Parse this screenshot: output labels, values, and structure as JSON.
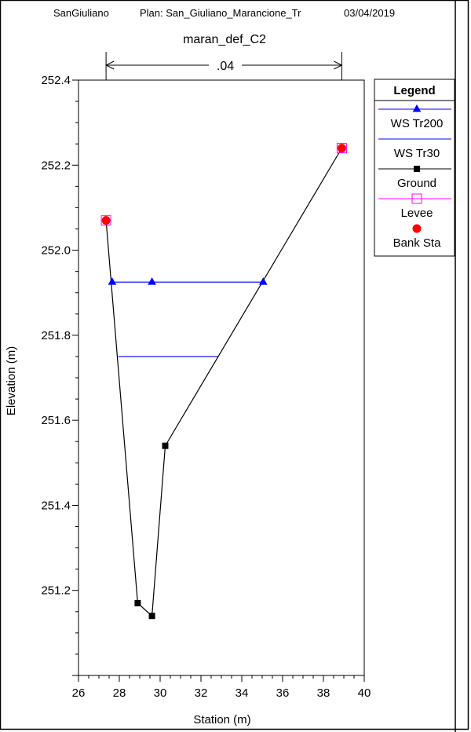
{
  "header": {
    "project": "SanGiuliano",
    "plan": "Plan: San_Giuliano_Marancione_Tr",
    "date": "03/04/2019"
  },
  "chart_data": {
    "type": "line",
    "title": "maran_def_C2",
    "xlabel": "Station (m)",
    "ylabel": "Elevation (m)",
    "xlim": [
      26,
      40
    ],
    "ylim": [
      251.0,
      252.4
    ],
    "x_ticks": [
      26,
      28,
      30,
      32,
      34,
      36,
      38,
      40
    ],
    "y_ticks": [
      251.2,
      251.4,
      251.6,
      251.8,
      252.0,
      252.2,
      252.4
    ],
    "y_tick_labels": [
      "251.2",
      "251.4",
      "251.6",
      "251.8",
      "252.0",
      "252.2",
      "252.4"
    ],
    "grid": false,
    "legend_position": "right",
    "manning": {
      "label": ".04",
      "from_station": 27.35,
      "to_station": 38.9
    },
    "legend": {
      "title": "Legend",
      "entries": [
        "WS Tr200",
        "WS Tr30",
        "Ground",
        "Levee",
        "Bank Sta"
      ]
    },
    "series": [
      {
        "name": "WS Tr200",
        "color": "#0000ff",
        "marker": "triangle",
        "x": [
          27.65,
          29.6,
          35.05
        ],
        "y": [
          251.925,
          251.925,
          251.925
        ]
      },
      {
        "name": "WS Tr30",
        "color": "#0000ff",
        "marker": "none",
        "x": [
          27.95,
          32.85
        ],
        "y": [
          251.75,
          251.75
        ]
      },
      {
        "name": "Ground",
        "color": "#000000",
        "marker": "square",
        "x": [
          27.35,
          28.9,
          29.6,
          30.25,
          38.9
        ],
        "y": [
          252.07,
          251.17,
          251.14,
          251.54,
          252.24
        ]
      },
      {
        "name": "Levee",
        "color": "#ff00ff",
        "marker": "open-square",
        "x": [
          27.35,
          38.9
        ],
        "y": [
          252.07,
          252.24
        ]
      },
      {
        "name": "Bank Sta",
        "color": "#ff0000",
        "marker": "circle",
        "x": [
          27.35,
          38.9
        ],
        "y": [
          252.07,
          252.24
        ]
      }
    ]
  }
}
